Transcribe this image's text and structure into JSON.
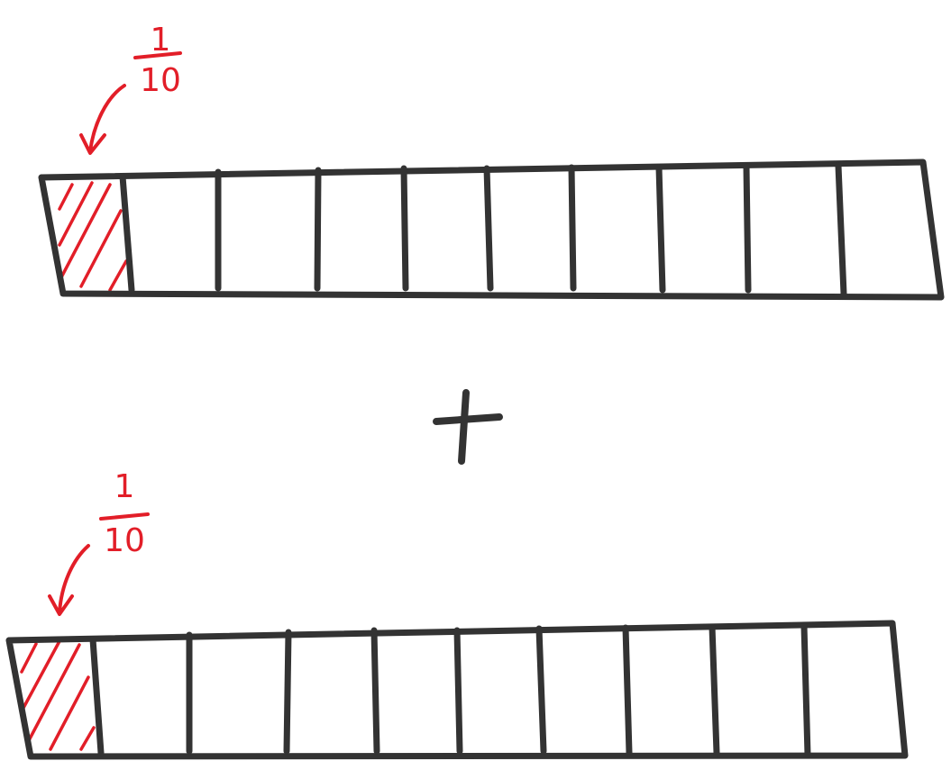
{
  "colors": {
    "outline": "#333333",
    "highlight": "#e21e28",
    "background": "#ffffff"
  },
  "operator": "+",
  "bars": [
    {
      "parts": 10,
      "shaded_parts": 1,
      "label": {
        "numerator": "1",
        "denominator": "10"
      }
    },
    {
      "parts": 10,
      "shaded_parts": 1,
      "label": {
        "numerator": "1",
        "denominator": "10"
      }
    }
  ]
}
